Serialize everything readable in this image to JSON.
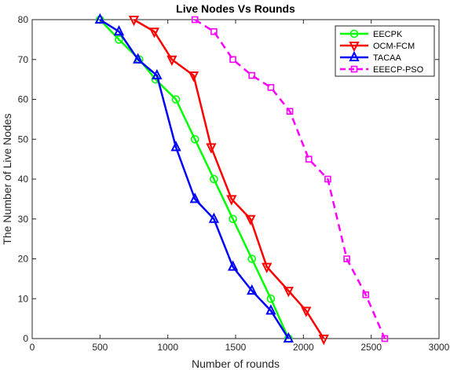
{
  "chart_data": {
    "type": "line",
    "title": "Live Nodes Vs Rounds",
    "xlabel": "Number of rounds",
    "ylabel": "The Number of Live Nodes",
    "xlim": [
      0,
      3000
    ],
    "ylim": [
      0,
      80
    ],
    "xticks": [
      0,
      500,
      1000,
      1500,
      2000,
      2500,
      3000
    ],
    "yticks": [
      0,
      10,
      20,
      30,
      40,
      50,
      60,
      70,
      80
    ],
    "grid": false,
    "legend_position": "top-right",
    "series": [
      {
        "name": "EECPK",
        "color": "#00ff00",
        "marker": "circle",
        "line_style": "solid",
        "x": [
          500,
          640,
          790,
          910,
          1060,
          1200,
          1340,
          1480,
          1620,
          1760,
          1890
        ],
        "y": [
          80,
          75,
          70,
          65,
          60,
          50,
          40,
          30,
          20,
          10,
          0
        ]
      },
      {
        "name": "OCM-FCM",
        "color": "#ff0000",
        "marker": "triangle-down",
        "line_style": "solid",
        "x": [
          750,
          900,
          1030,
          1190,
          1320,
          1470,
          1610,
          1730,
          1890,
          2020,
          2150
        ],
        "y": [
          80,
          77,
          70,
          66,
          48,
          35,
          30,
          18,
          12,
          7,
          0
        ]
      },
      {
        "name": "TACAA",
        "color": "#0000ff",
        "marker": "triangle-up",
        "line_style": "solid",
        "x": [
          500,
          640,
          780,
          920,
          1060,
          1200,
          1340,
          1480,
          1620,
          1760,
          1890
        ],
        "y": [
          80,
          77,
          70,
          66,
          48,
          35,
          30,
          18,
          12,
          7,
          0
        ]
      },
      {
        "name": "EEECP-PSO",
        "color": "#ff00ff",
        "marker": "square",
        "line_style": "dashed",
        "x": [
          1200,
          1340,
          1480,
          1620,
          1760,
          1900,
          2040,
          2180,
          2320,
          2460,
          2600
        ],
        "y": [
          80,
          77,
          70,
          66,
          63,
          57,
          45,
          40,
          20,
          11,
          0
        ]
      }
    ]
  }
}
